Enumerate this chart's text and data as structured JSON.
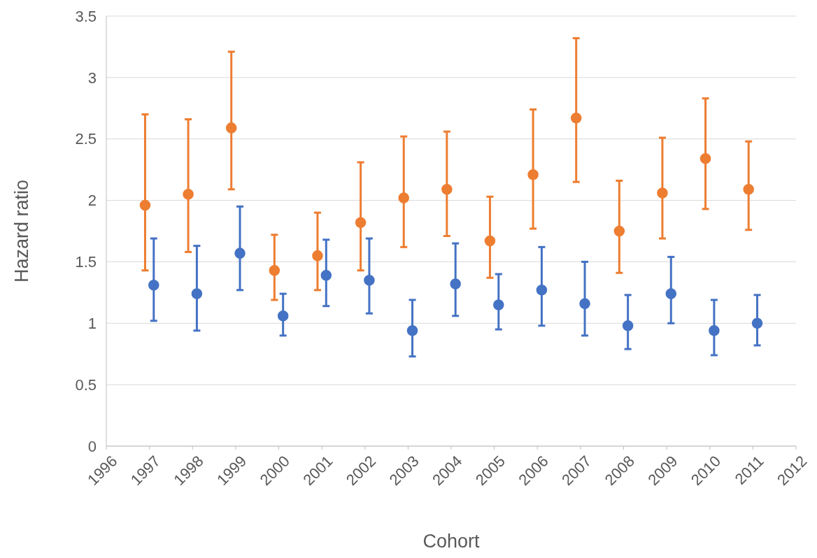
{
  "chart_data": {
    "type": "scatter",
    "xlabel": "Cohort",
    "ylabel": "Hazard ratio",
    "xlim": [
      1996,
      2012
    ],
    "xticks": [
      1996,
      1997,
      1998,
      1999,
      2000,
      2001,
      2002,
      2003,
      2004,
      2005,
      2006,
      2007,
      2008,
      2009,
      2010,
      2011,
      2012
    ],
    "ylim": [
      0,
      3.5
    ],
    "yticks": [
      0,
      0.5,
      1,
      1.5,
      2,
      2.5,
      3,
      3.5
    ],
    "grid": "y",
    "marker": "circle",
    "series": [
      {
        "color": "#ed7d31",
        "x": [
          1996.9,
          1997.9,
          1998.9,
          1999.9,
          2000.9,
          2001.9,
          2002.9,
          2003.9,
          2004.9,
          2005.9,
          2006.9,
          2007.9,
          2008.9,
          2009.9,
          2010.9
        ],
        "values": [
          1.96,
          2.05,
          2.59,
          1.43,
          1.55,
          1.82,
          2.02,
          2.09,
          1.67,
          2.21,
          2.67,
          1.75,
          2.06,
          2.34,
          2.09
        ],
        "errors": [
          [
            1.43,
            2.7
          ],
          [
            1.58,
            2.66
          ],
          [
            2.09,
            3.21
          ],
          [
            1.19,
            1.72
          ],
          [
            1.27,
            1.9
          ],
          [
            1.43,
            2.31
          ],
          [
            1.62,
            2.52
          ],
          [
            1.71,
            2.56
          ],
          [
            1.37,
            2.03
          ],
          [
            1.77,
            2.74
          ],
          [
            2.15,
            3.32
          ],
          [
            1.41,
            2.16
          ],
          [
            1.69,
            2.51
          ],
          [
            1.93,
            2.83
          ],
          [
            1.76,
            2.48
          ]
        ]
      },
      {
        "color": "#4472c4",
        "x": [
          1997.1,
          1998.1,
          1999.1,
          2000.1,
          2001.1,
          2002.1,
          2003.1,
          2004.1,
          2005.1,
          2006.1,
          2007.1,
          2008.1,
          2009.1,
          2010.1,
          2011.1
        ],
        "values": [
          1.31,
          1.24,
          1.57,
          1.06,
          1.39,
          1.35,
          0.94,
          1.32,
          1.15,
          1.27,
          1.16,
          0.98,
          1.24,
          0.94,
          1.0
        ],
        "errors": [
          [
            1.02,
            1.69
          ],
          [
            0.94,
            1.63
          ],
          [
            1.27,
            1.95
          ],
          [
            0.9,
            1.24
          ],
          [
            1.14,
            1.68
          ],
          [
            1.08,
            1.69
          ],
          [
            0.73,
            1.19
          ],
          [
            1.06,
            1.65
          ],
          [
            0.95,
            1.4
          ],
          [
            0.98,
            1.62
          ],
          [
            0.9,
            1.5
          ],
          [
            0.79,
            1.23
          ],
          [
            1.0,
            1.54
          ],
          [
            0.74,
            1.19
          ],
          [
            0.82,
            1.23
          ]
        ]
      }
    ]
  }
}
